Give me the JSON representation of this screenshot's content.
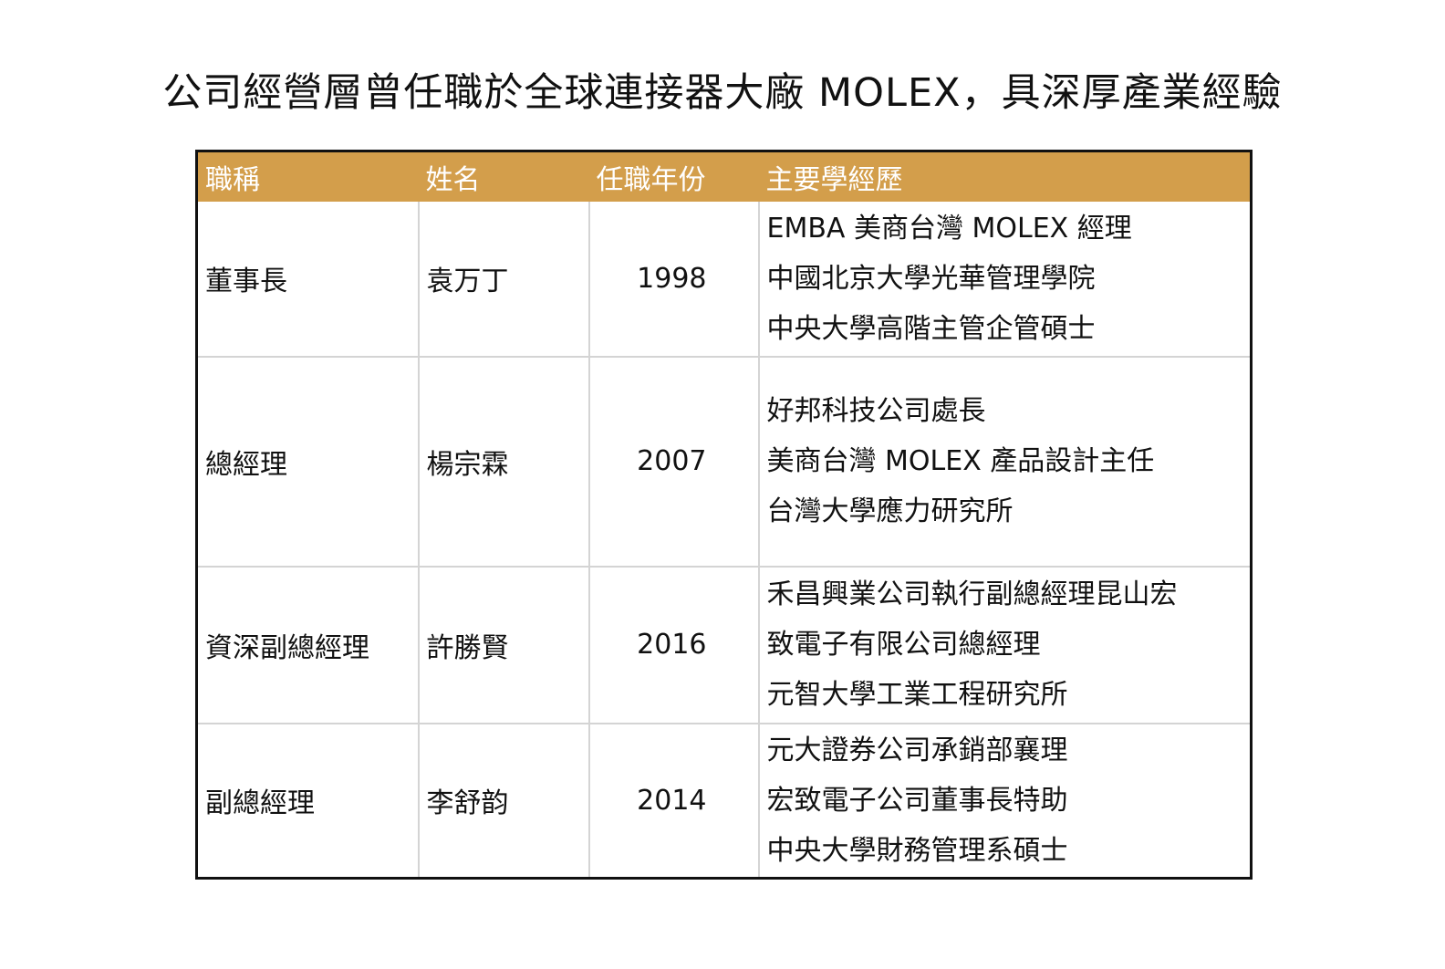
{
  "title": "公司經營層曾任職於全球連接器大廠 MOLEX，具深厚產業經驗",
  "table": {
    "headers": [
      "職稱",
      "姓名",
      "任職年份",
      "主要學經歷"
    ],
    "rows": [
      {
        "title": "董事長",
        "name": "袁万丁",
        "year": "1998",
        "experience": [
          "EMBA 美商台灣 MOLEX 經理",
          "中國北京大學光華管理學院",
          "中央大學高階主管企管碩士"
        ]
      },
      {
        "title": "總經理",
        "name": "楊宗霖",
        "year": "2007",
        "experience": [
          "好邦科技公司處長",
          "美商台灣 MOLEX 產品設計主任",
          "台灣大學應力研究所"
        ]
      },
      {
        "title": "資深副總經理",
        "name": "許勝賢",
        "year": "2016",
        "experience": [
          "禾昌興業公司執行副總經理昆山宏",
          "致電子有限公司總經理",
          "元智大學工業工程研究所"
        ]
      },
      {
        "title": "副總經理",
        "name": "李舒韵",
        "year": "2014",
        "experience": [
          "元大證券公司承銷部襄理",
          "宏致電子公司董事長特助",
          "中央大學財務管理系碩士"
        ]
      }
    ]
  },
  "colors": {
    "header_bg": "#d39e4b",
    "header_text": "#ffffff",
    "grid": "#d4d4d4",
    "outer_border": "#111111"
  }
}
